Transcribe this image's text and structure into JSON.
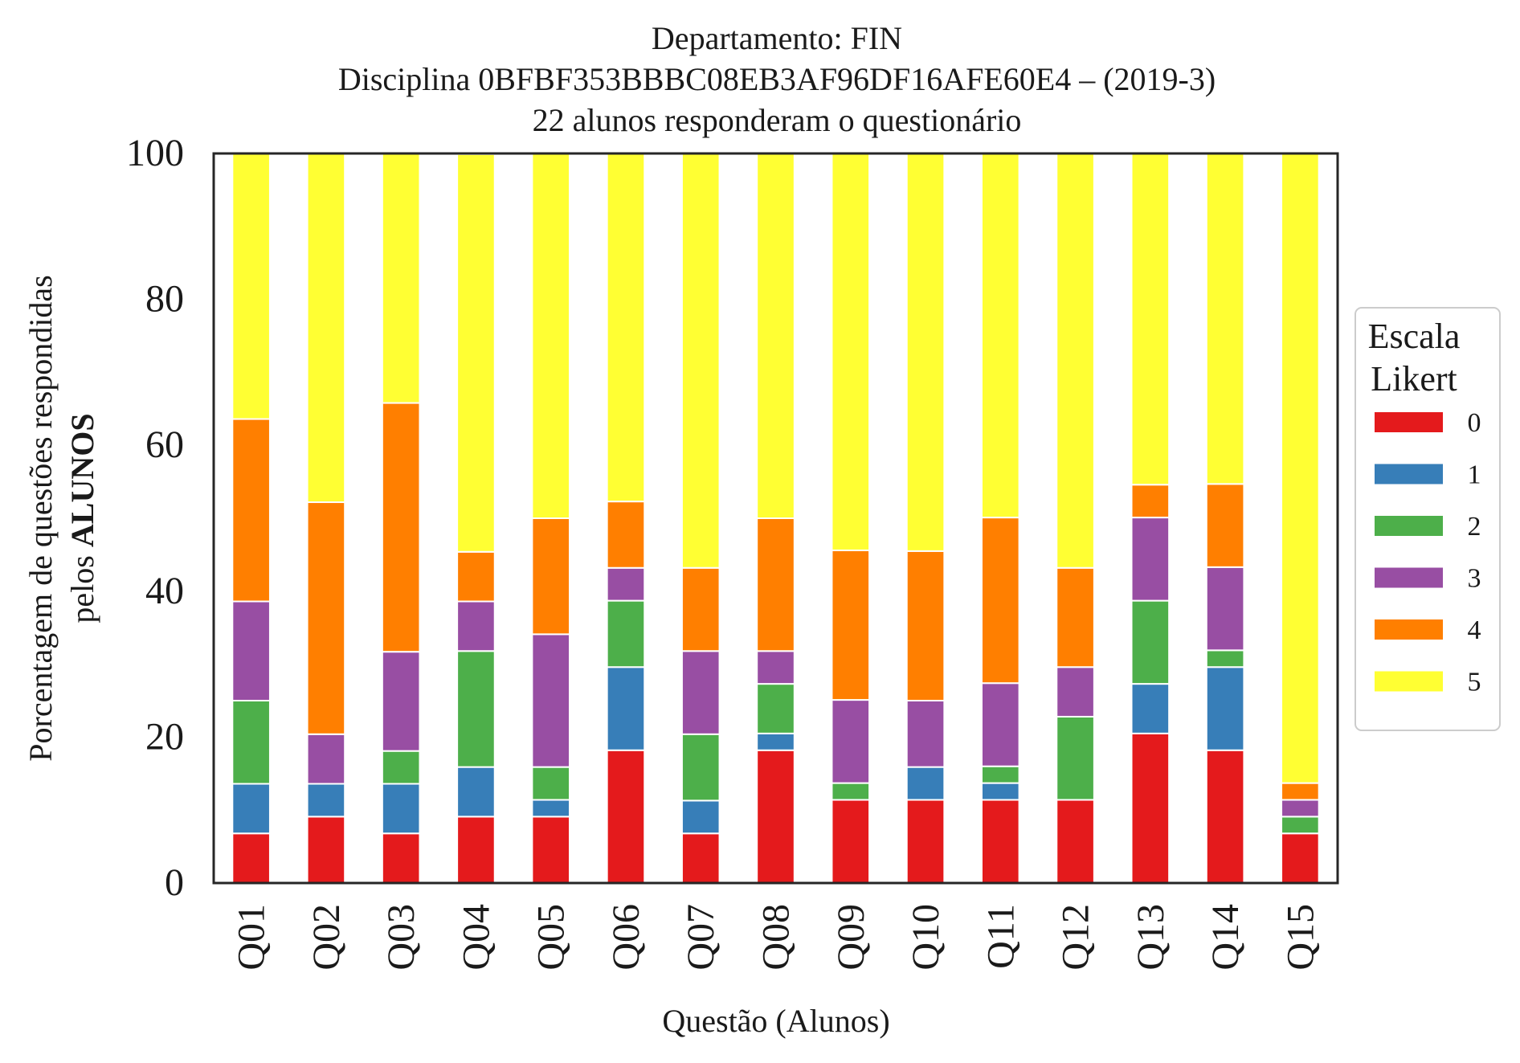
{
  "chart_data": {
    "type": "bar",
    "stacked": true,
    "title_lines": [
      "Departamento: FIN",
      "Disciplina 0BFBF353BBBC08EB3AF96DF16AFE60E4 – (2019-3)",
      "22 alunos responderam o questionário"
    ],
    "xlabel": "Questão (Alunos)",
    "ylabel_line1": "Porcentagem de questões respondidas",
    "ylabel_line2_prefix": "pelos ",
    "ylabel_line2_bold": "ALUNOS",
    "ylim": [
      0,
      100
    ],
    "yticks": [
      "0",
      "20",
      "40",
      "60",
      "80",
      "100"
    ],
    "categories": [
      "Q01",
      "Q02",
      "Q03",
      "Q04",
      "Q05",
      "Q06",
      "Q07",
      "Q08",
      "Q09",
      "Q10",
      "Q11",
      "Q12",
      "Q13",
      "Q14",
      "Q15"
    ],
    "legend": {
      "title_lines": [
        "Escala",
        "Likert"
      ],
      "placement": "right"
    },
    "grid": false,
    "series": [
      {
        "name": "0",
        "color": "#e41a1c",
        "values": [
          6.8,
          9.1,
          6.8,
          9.1,
          9.1,
          18.2,
          6.8,
          18.2,
          11.4,
          11.4,
          11.4,
          11.4,
          20.5,
          18.2,
          6.8
        ]
      },
      {
        "name": "1",
        "color": "#377eb8",
        "values": [
          6.8,
          4.5,
          6.8,
          6.8,
          2.3,
          11.4,
          4.5,
          2.3,
          0,
          4.5,
          2.3,
          0,
          6.8,
          11.4,
          0
        ]
      },
      {
        "name": "2",
        "color": "#4daf4a",
        "values": [
          11.4,
          0,
          4.5,
          15.9,
          4.5,
          9.1,
          9.1,
          6.8,
          2.3,
          0,
          2.3,
          11.4,
          11.4,
          2.3,
          2.3
        ]
      },
      {
        "name": "3",
        "color": "#984ea3",
        "values": [
          13.6,
          6.8,
          13.6,
          6.8,
          18.2,
          4.5,
          11.4,
          4.5,
          11.4,
          9.1,
          11.4,
          6.8,
          11.4,
          11.4,
          2.3
        ]
      },
      {
        "name": "4",
        "color": "#ff7f00",
        "values": [
          25.0,
          31.8,
          34.1,
          6.8,
          15.9,
          9.1,
          11.4,
          18.2,
          20.5,
          20.5,
          22.7,
          13.6,
          4.5,
          11.4,
          2.3
        ]
      },
      {
        "name": "5",
        "color": "#ffff33",
        "values": [
          36.4,
          47.8,
          34.2,
          54.5,
          50.0,
          47.7,
          56.8,
          50.0,
          54.4,
          54.5,
          49.9,
          56.8,
          45.4,
          45.3,
          86.3
        ]
      }
    ]
  }
}
